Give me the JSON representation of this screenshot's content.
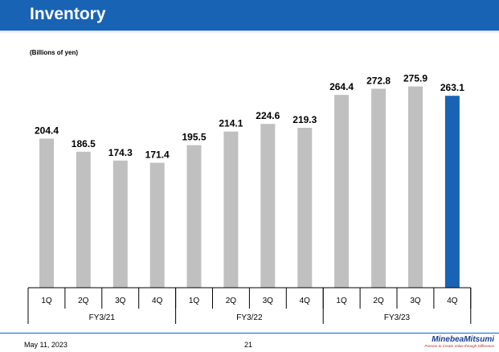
{
  "header": {
    "title": "Inventory"
  },
  "chart_data": {
    "type": "bar",
    "unit_label": "(Billions of yen)",
    "categories": [
      "1Q",
      "2Q",
      "3Q",
      "4Q",
      "1Q",
      "2Q",
      "3Q",
      "4Q",
      "1Q",
      "2Q",
      "3Q",
      "4Q"
    ],
    "groups": [
      {
        "label": "FY3/21",
        "count": 4
      },
      {
        "label": "FY3/22",
        "count": 4
      },
      {
        "label": "FY3/23",
        "count": 4
      }
    ],
    "values": [
      204.4,
      186.5,
      174.3,
      171.4,
      195.5,
      214.1,
      224.6,
      219.3,
      264.4,
      272.8,
      275.9,
      263.1
    ],
    "data_labels": [
      "204.4",
      "186.5",
      "174.3",
      "171.4",
      "195.5",
      "214.1",
      "224.6",
      "219.3",
      "264.4",
      "272.8",
      "275.9",
      "263.1"
    ],
    "highlight_index": 11,
    "colors": {
      "bar": "#c0c0c0",
      "highlight": "#1863b4"
    },
    "ylim": [
      0,
      300
    ]
  },
  "footer": {
    "date": "May 11, 2023",
    "page": "21",
    "logo": "MinebeaMitsumi",
    "tagline": "Passion to Create Value through Difference"
  }
}
